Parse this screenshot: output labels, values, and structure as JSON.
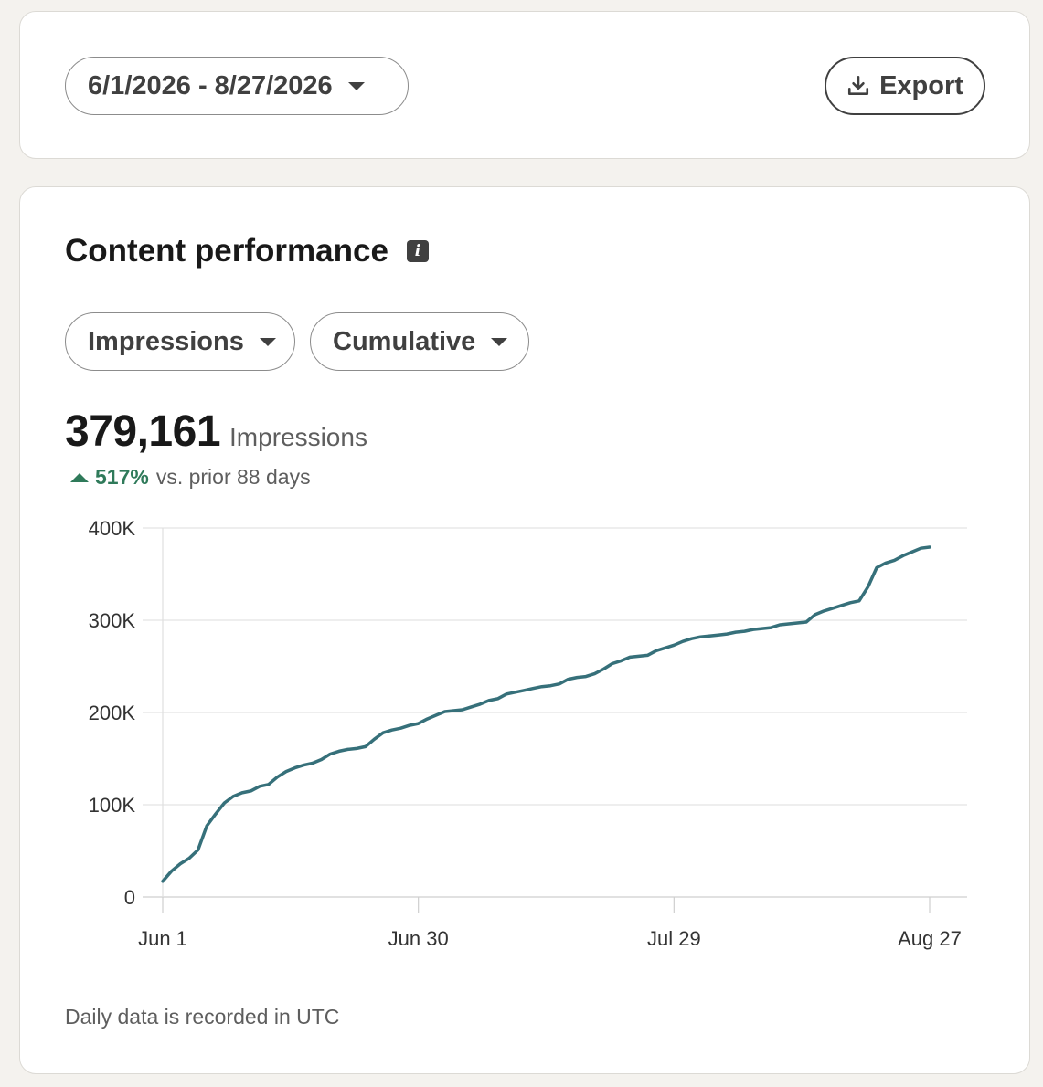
{
  "date_range": {
    "label": "6/1/2026 - 8/27/2026"
  },
  "export": {
    "label": "Export",
    "icon": "download-icon"
  },
  "panel": {
    "title": "Content performance",
    "info_icon": "i",
    "filters": {
      "metric": "Impressions",
      "mode": "Cumulative"
    },
    "summary": {
      "value": "379,161",
      "unit": "Impressions",
      "change_pct": "517%",
      "change_label": "vs. prior 88 days",
      "trend": "up"
    },
    "footnote": "Daily data is recorded in UTC"
  },
  "colors": {
    "line": "#36707a",
    "positive": "#2f7a5a",
    "grid": "#e3e3e3"
  },
  "chart_data": {
    "type": "line",
    "x_tick_labels": [
      "Jun 1",
      "Jun 30",
      "Jul 29",
      "Aug 27"
    ],
    "x_tick_days": [
      0,
      29,
      58,
      87
    ],
    "y_tick_labels": [
      "0",
      "100K",
      "200K",
      "300K",
      "400K"
    ],
    "y_tick_values": [
      0,
      100000,
      200000,
      300000,
      400000
    ],
    "xlim": [
      0,
      87
    ],
    "ylim": [
      0,
      400000
    ],
    "grid": true,
    "legend": "none",
    "series": [
      {
        "x_dates": [
          "2026-06-01",
          "2026-08-27"
        ],
        "x": [
          0,
          1,
          2,
          3,
          4,
          5,
          6,
          7,
          8,
          9,
          10,
          11,
          12,
          13,
          14,
          15,
          16,
          17,
          18,
          19,
          20,
          21,
          22,
          23,
          24,
          25,
          26,
          27,
          28,
          29,
          30,
          31,
          32,
          33,
          34,
          35,
          36,
          37,
          38,
          39,
          40,
          41,
          42,
          43,
          44,
          45,
          46,
          47,
          48,
          49,
          50,
          51,
          52,
          53,
          54,
          55,
          56,
          57,
          58,
          59,
          60,
          61,
          62,
          63,
          64,
          65,
          66,
          67,
          68,
          69,
          70,
          71,
          72,
          73,
          74,
          75,
          76,
          77,
          78,
          79,
          80,
          81,
          82,
          83,
          84,
          85,
          86,
          87
        ],
        "values": [
          17000,
          28000,
          36000,
          42000,
          51000,
          77000,
          90000,
          102000,
          109000,
          113000,
          115000,
          120000,
          122000,
          130000,
          136000,
          140000,
          143000,
          145000,
          149000,
          155000,
          158000,
          160000,
          161000,
          163000,
          171000,
          178000,
          181000,
          183000,
          186000,
          188000,
          193000,
          197000,
          201000,
          202000,
          203000,
          206000,
          209000,
          213000,
          215000,
          220000,
          222000,
          224000,
          226000,
          228000,
          229000,
          231000,
          236000,
          238000,
          239000,
          242000,
          247000,
          253000,
          256000,
          260000,
          261000,
          262000,
          267000,
          270000,
          273000,
          277000,
          280000,
          282000,
          283000,
          284000,
          285000,
          287000,
          288000,
          290000,
          291000,
          292000,
          295000,
          296000,
          297000,
          298000,
          306000,
          310000,
          313000,
          316000,
          319000,
          321000,
          336000,
          357000,
          362000,
          365000,
          370000,
          374000,
          378000,
          379161
        ]
      }
    ]
  }
}
